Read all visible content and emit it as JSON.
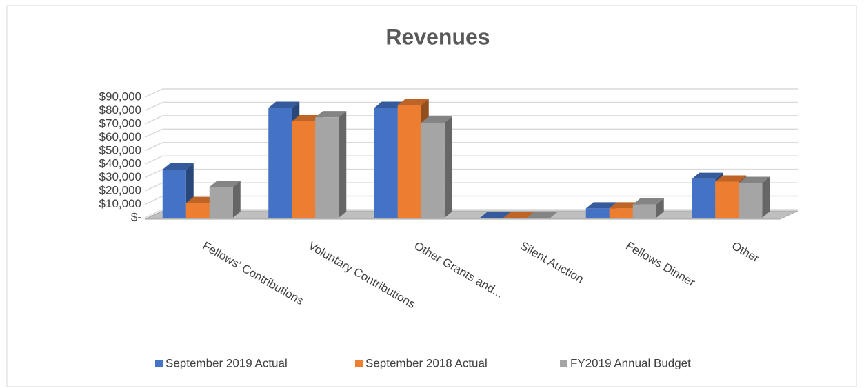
{
  "chart_data": {
    "type": "bar3d",
    "title": "Revenues",
    "categories": [
      "Fellows' Contributions",
      "Voluntary Contributions",
      "Other Grants and...",
      "Silent Auction",
      "Fellows Dinner",
      "Other"
    ],
    "series": [
      {
        "name": "September 2019 Actual",
        "color": "#4472c4",
        "values": [
          36000,
          82000,
          82000,
          0,
          7000,
          29000
        ]
      },
      {
        "name": "September 2018 Actual",
        "color": "#ed7d31",
        "values": [
          11000,
          72000,
          84000,
          0,
          7000,
          27000
        ]
      },
      {
        "name": "FY2019 Annual Budget",
        "color": "#a5a5a5",
        "values": [
          23000,
          75000,
          71000,
          0,
          10000,
          26000
        ]
      }
    ],
    "ylim": [
      0,
      90000
    ],
    "yticks": [
      {
        "value": 0,
        "label": "$-"
      },
      {
        "value": 10000,
        "label": "$10,000"
      },
      {
        "value": 20000,
        "label": "$20,000"
      },
      {
        "value": 30000,
        "label": "$30,000"
      },
      {
        "value": 40000,
        "label": "$40,000"
      },
      {
        "value": 50000,
        "label": "$50,000"
      },
      {
        "value": 60000,
        "label": "$60,000"
      },
      {
        "value": 70000,
        "label": "$70,000"
      },
      {
        "value": 80000,
        "label": "$80,000"
      },
      {
        "value": 90000,
        "label": "$90,000"
      }
    ],
    "grid": true,
    "legend": "bottom"
  }
}
